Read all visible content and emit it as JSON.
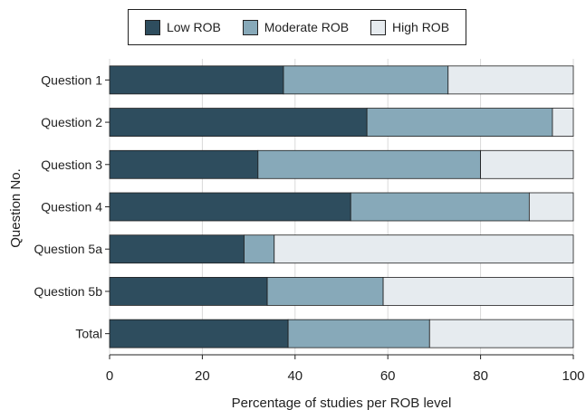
{
  "chart_data": {
    "type": "bar",
    "orientation": "horizontal",
    "stacked": true,
    "categories": [
      "Question 1",
      "Question 2",
      "Question 3",
      "Question 4",
      "Question 5a",
      "Question 5b",
      "Total"
    ],
    "series": [
      {
        "name": "Low ROB",
        "color": "#2e4d5e",
        "values": [
          37.5,
          55.5,
          32,
          52,
          29,
          34,
          38.5
        ]
      },
      {
        "name": "Moderate ROB",
        "color": "#87a9b9",
        "values": [
          35.5,
          40,
          48,
          38.5,
          6.5,
          25,
          30.5
        ]
      },
      {
        "name": "High ROB",
        "color": "#e6ebef",
        "values": [
          27,
          4.5,
          20,
          9.5,
          64.5,
          41,
          31
        ]
      }
    ],
    "xlabel": "Percentage of studies per ROB level",
    "ylabel": "Question No.",
    "xlim": [
      0,
      100
    ],
    "xticks": [
      0,
      20,
      40,
      60,
      80,
      100
    ],
    "grid": true,
    "legend_position": "top"
  }
}
